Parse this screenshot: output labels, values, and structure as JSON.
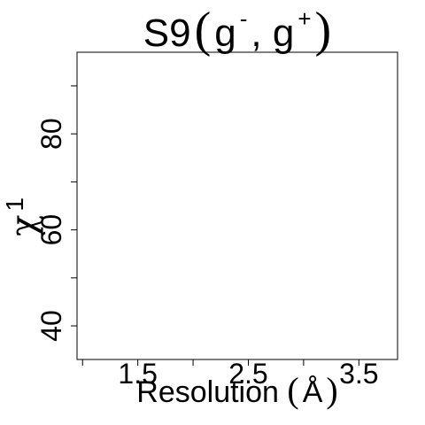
{
  "chart_data": {
    "type": "scatter",
    "title": {
      "main": "S9",
      "open_paren": "(",
      "first": "g",
      "first_sup": "-",
      "separator": ", ",
      "second": "g",
      "second_sup": "+",
      "close_paren": ")"
    },
    "xlabel": {
      "text": "Resolution ",
      "open_paren": "(",
      "unit": "Å",
      "close_paren": ")"
    },
    "ylabel": {
      "symbol": "χ",
      "sup": "1"
    },
    "x_ticks": [
      1.5,
      2.5,
      3.5
    ],
    "x_minor_ticks": [
      1.0,
      2.0,
      3.0
    ],
    "x_tick_labels": [
      "1.5",
      "2.5",
      "3.5"
    ],
    "y_ticks": [
      40,
      60,
      80
    ],
    "y_minor_ticks": [
      50,
      70,
      90
    ],
    "y_tick_labels": [
      "40",
      "60",
      "80"
    ],
    "xlim": [
      0.95,
      3.85
    ],
    "ylim": [
      33,
      97
    ],
    "grid": false,
    "legend": "none",
    "points": []
  }
}
